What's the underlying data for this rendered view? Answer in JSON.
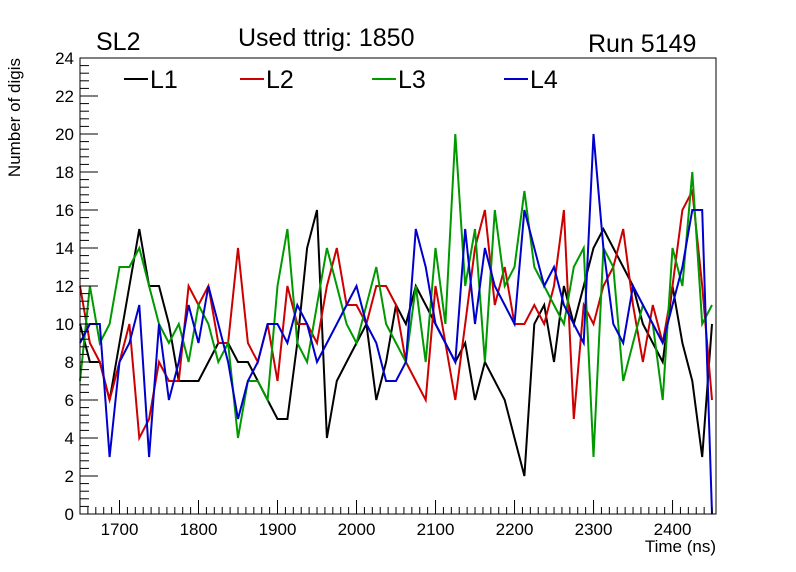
{
  "header": {
    "left_label": "SL2",
    "center_label": "Used ttrig: 1850",
    "right_label": "Run 5149"
  },
  "chart_data": {
    "type": "line",
    "title": "Used ttrig: 1850",
    "xlabel": "Time (ns)",
    "ylabel": "Number of digis",
    "xlim": [
      1650,
      2455
    ],
    "ylim": [
      0,
      24
    ],
    "xticks": [
      1700,
      1800,
      1900,
      2000,
      2100,
      2200,
      2300,
      2400
    ],
    "yticks": [
      0,
      2,
      4,
      6,
      8,
      10,
      12,
      14,
      16,
      18,
      20,
      22,
      24
    ],
    "legend_position": "top-left",
    "x": [
      1650,
      1662.5,
      1675,
      1687.5,
      1700,
      1712.5,
      1725,
      1737.5,
      1750,
      1762.5,
      1775,
      1787.5,
      1800,
      1812.5,
      1825,
      1837.5,
      1850,
      1862.5,
      1875,
      1887.5,
      1900,
      1912.5,
      1925,
      1937.5,
      1950,
      1962.5,
      1975,
      1987.5,
      2000,
      2012.5,
      2025,
      2037.5,
      2050,
      2062.5,
      2075,
      2087.5,
      2100,
      2112.5,
      2125,
      2137.5,
      2150,
      2162.5,
      2175,
      2187.5,
      2200,
      2212.5,
      2225,
      2237.5,
      2250,
      2262.5,
      2275,
      2287.5,
      2300,
      2312.5,
      2325,
      2337.5,
      2350,
      2362.5,
      2375,
      2387.5,
      2400,
      2412.5,
      2425,
      2437.5,
      2450
    ],
    "series": [
      {
        "name": "L1",
        "color": "#000000",
        "values": [
          10,
          8,
          8,
          6,
          9,
          12,
          15,
          12,
          12,
          10,
          7,
          7,
          7,
          8,
          9,
          9,
          8,
          8,
          7,
          6,
          5,
          5,
          9,
          14,
          16,
          4,
          7,
          8,
          9,
          10,
          6,
          8,
          11,
          10,
          12,
          11,
          10,
          9,
          8,
          9,
          6,
          8,
          7,
          6,
          4,
          2,
          10,
          11,
          8,
          12,
          10,
          12,
          14,
          15,
          14,
          13,
          12,
          10,
          9,
          8,
          12,
          9,
          7,
          3,
          10
        ]
      },
      {
        "name": "L2",
        "color": "#cc0000",
        "values": [
          12,
          9,
          8,
          6,
          8,
          10,
          4,
          5,
          8,
          7,
          7,
          12,
          11,
          12,
          9,
          9,
          14,
          9,
          8,
          10,
          7,
          12,
          10,
          10,
          9,
          12,
          14,
          11,
          11,
          10,
          12,
          12,
          11,
          8,
          7,
          6,
          12,
          9,
          6,
          10,
          14,
          16,
          11,
          13,
          10,
          10,
          11,
          10,
          12,
          16,
          5,
          11,
          10,
          12,
          13,
          15,
          11,
          8,
          11,
          9,
          12,
          16,
          17,
          12,
          6
        ]
      },
      {
        "name": "L3",
        "color": "#009900",
        "values": [
          7,
          12,
          9,
          10,
          13,
          13,
          14,
          12,
          10,
          9,
          10,
          8,
          11,
          10,
          8,
          9,
          4,
          7,
          7,
          6,
          12,
          15,
          9,
          8,
          11,
          14,
          12,
          10,
          9,
          11,
          13,
          10,
          9,
          8,
          12,
          8,
          14,
          10,
          20,
          12,
          15,
          8,
          16,
          12,
          13,
          17,
          13,
          12,
          11,
          10,
          13,
          14,
          3,
          14,
          13,
          7,
          9,
          11,
          10,
          6,
          14,
          12,
          18,
          10,
          11
        ]
      },
      {
        "name": "L4",
        "color": "#0000cc",
        "values": [
          9,
          10,
          10,
          3,
          8,
          9,
          11,
          3,
          10,
          6,
          8,
          11,
          9,
          12,
          10,
          8,
          5,
          7,
          8,
          10,
          10,
          9,
          11,
          10,
          8,
          9,
          10,
          11,
          12,
          10,
          9,
          7,
          7,
          8,
          15,
          13,
          10,
          9,
          8,
          15,
          10,
          14,
          12,
          11,
          10,
          16,
          14,
          12,
          13,
          11,
          10,
          9,
          20,
          14,
          10,
          9,
          12,
          11,
          10,
          9,
          11,
          13,
          16,
          16,
          0
        ]
      }
    ]
  }
}
